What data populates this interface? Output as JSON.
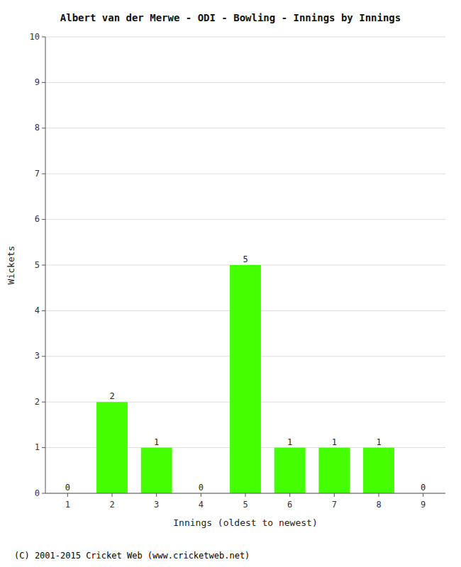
{
  "chart_data": {
    "type": "bar",
    "title": "Albert van der Merwe - ODI - Bowling - Innings by Innings",
    "xlabel": "Innings (oldest to newest)",
    "ylabel": "Wickets",
    "categories": [
      1,
      2,
      3,
      4,
      5,
      6,
      7,
      8,
      9
    ],
    "values": [
      0,
      2,
      1,
      0,
      5,
      1,
      1,
      1,
      0
    ],
    "color": "#44ff00",
    "ylim": [
      0,
      10
    ],
    "yticks": [
      0,
      1,
      2,
      3,
      4,
      5,
      6,
      7,
      8,
      9,
      10
    ],
    "grid": true,
    "data_labels": true,
    "annotations": [
      "(C) 2001-2015 Cricket Web (www.cricketweb.net)"
    ]
  }
}
